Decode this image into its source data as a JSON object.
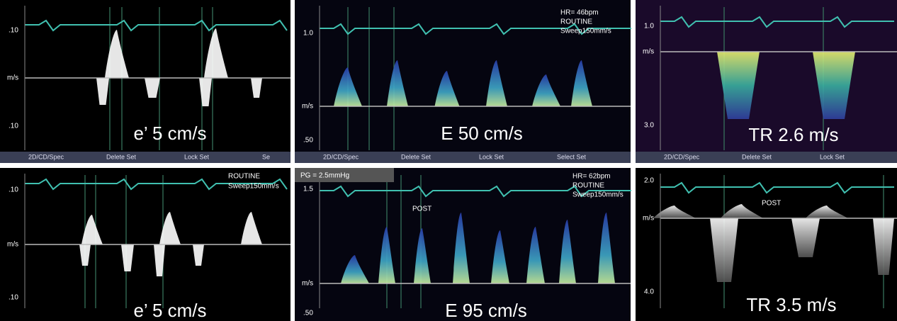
{
  "panels": [
    {
      "scale_top": ".10",
      "unit": "m/s",
      "scale_bottom": ".10",
      "caption": "e’ 5 cm/s",
      "notes": [],
      "menu": [
        "2D/CD/Spec",
        "Delete Set",
        "Lock Set",
        "Se"
      ]
    },
    {
      "scale_top": "1.0",
      "unit": "m/s",
      "scale_bottom": ".50",
      "caption": "E   50 cm/s",
      "notes": [
        "HR= 46bpm",
        "ROUTINE",
        "Sweep150mm/s"
      ],
      "menu": [
        "2D/CD/Spec",
        "Delete Set",
        "Lock Set",
        "Select Set"
      ]
    },
    {
      "scale_top": "1.0",
      "unit": "m/s",
      "scale_bottom": "3.0",
      "caption": "TR  2.6 m/s",
      "notes": [],
      "menu": [
        "2D/CD/Spec",
        "Delete Set",
        "Lock Set"
      ]
    },
    {
      "scale_top": ".10",
      "unit": "m/s",
      "scale_bottom": ".10",
      "caption": "e’ 5 cm/s",
      "notes": [
        "ROUTINE",
        "Sweep150mm/s"
      ],
      "menu": []
    },
    {
      "scale_top": "1.5",
      "unit": "m/s",
      "scale_bottom": ".50",
      "caption": "E   95 cm/s",
      "notes": [
        "PG = 2.5mmHg",
        "POST",
        "HR= 62bpm",
        "ROUTINE",
        "Sweep150mm/s"
      ],
      "menu": []
    },
    {
      "scale_top": "2.0",
      "unit": "m/s",
      "scale_bottom": "4.0",
      "caption": "TR  3.5 m/s",
      "notes": [
        "POST"
      ],
      "menu": []
    }
  ]
}
